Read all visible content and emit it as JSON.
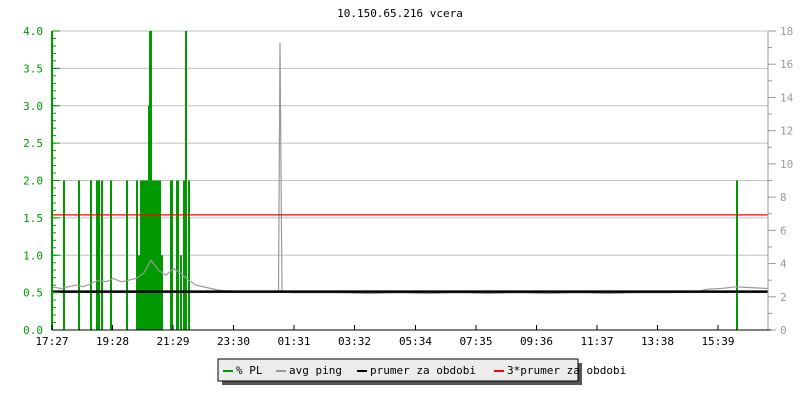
{
  "chart_data": {
    "type": "line",
    "title": "10.150.65.216 vcera",
    "x_ticks": [
      "17:27",
      "19:28",
      "21:29",
      "23:30",
      "01:31",
      "03:32",
      "05:34",
      "07:35",
      "09:36",
      "11:37",
      "13:38",
      "15:39"
    ],
    "left_axis": {
      "range": [
        0,
        4.0
      ],
      "ticks": [
        "0.0",
        "0.5",
        "1.0",
        "1.5",
        "2.0",
        "2.5",
        "3.0",
        "3.5",
        "4.0"
      ],
      "color": "#009900"
    },
    "right_axis": {
      "range": [
        0,
        18
      ],
      "ticks": [
        "0",
        "2",
        "4",
        "6",
        "8",
        "10",
        "12",
        "14",
        "16",
        "18"
      ],
      "color": "#999999"
    },
    "grid": true,
    "legend_placement": "bottom",
    "legend": [
      {
        "label": "% PL",
        "color": "#009900"
      },
      {
        "label": "avg ping",
        "color": "#999999"
      },
      {
        "label": "prumer za obdobi",
        "color": "#000000"
      },
      {
        "label": "3*prumer za obdobi",
        "color": "#ff0000"
      }
    ],
    "series": [
      {
        "name": "% PL",
        "axis": "left",
        "type": "impulse",
        "points": [
          [
            "17:51",
            2.0
          ],
          [
            "18:21",
            2.0
          ],
          [
            "18:45",
            2.0
          ],
          [
            "18:57",
            2.0
          ],
          [
            "19:01",
            2.0
          ],
          [
            "19:07",
            2.0
          ],
          [
            "19:25",
            2.0
          ],
          [
            "19:57",
            2.0
          ],
          [
            "20:17",
            2.0
          ],
          [
            "20:21",
            1.0
          ],
          [
            "20:25",
            2.0
          ],
          [
            "20:29",
            2.0
          ],
          [
            "20:31",
            2.0
          ],
          [
            "20:33",
            2.0
          ],
          [
            "20:35",
            2.0
          ],
          [
            "20:37",
            2.0
          ],
          [
            "20:39",
            2.0
          ],
          [
            "20:41",
            3.0
          ],
          [
            "20:43",
            4.0
          ],
          [
            "20:45",
            4.0
          ],
          [
            "20:47",
            2.0
          ],
          [
            "20:51",
            2.0
          ],
          [
            "20:55",
            2.0
          ],
          [
            "20:59",
            2.0
          ],
          [
            "21:03",
            2.0
          ],
          [
            "21:07",
            1.0
          ],
          [
            "21:25",
            2.0
          ],
          [
            "21:27",
            2.0
          ],
          [
            "21:37",
            2.0
          ],
          [
            "21:39",
            2.0
          ],
          [
            "21:45",
            1.0
          ],
          [
            "21:51",
            2.0
          ],
          [
            "21:53",
            2.0
          ],
          [
            "21:55",
            4.0
          ],
          [
            "22:01",
            2.0
          ],
          [
            "16:17",
            2.0
          ]
        ]
      },
      {
        "name": "avg ping",
        "axis": "right",
        "points": [
          [
            "17:27",
            2.6
          ],
          [
            "17:45",
            2.5
          ],
          [
            "18:00",
            2.6
          ],
          [
            "18:15",
            2.7
          ],
          [
            "18:30",
            2.6
          ],
          [
            "18:45",
            2.8
          ],
          [
            "19:00",
            3.0
          ],
          [
            "19:15",
            2.9
          ],
          [
            "19:30",
            3.1
          ],
          [
            "19:45",
            2.9
          ],
          [
            "20:00",
            3.0
          ],
          [
            "20:15",
            3.1
          ],
          [
            "20:30",
            3.4
          ],
          [
            "20:45",
            4.2
          ],
          [
            "21:00",
            3.6
          ],
          [
            "21:15",
            3.3
          ],
          [
            "21:30",
            3.7
          ],
          [
            "21:45",
            3.4
          ],
          [
            "22:00",
            3.0
          ],
          [
            "22:15",
            2.7
          ],
          [
            "22:30",
            2.6
          ],
          [
            "22:45",
            2.5
          ],
          [
            "23:00",
            2.4
          ],
          [
            "23:15",
            2.35
          ],
          [
            "23:30",
            2.35
          ],
          [
            "23:45",
            2.3
          ],
          [
            "00:00",
            2.3
          ],
          [
            "00:30",
            2.3
          ],
          [
            "01:00",
            2.3
          ],
          [
            "01:03",
            17.3
          ],
          [
            "01:05",
            9.8
          ],
          [
            "01:07",
            2.3
          ],
          [
            "01:30",
            2.25
          ],
          [
            "02:00",
            2.25
          ],
          [
            "03:00",
            2.25
          ],
          [
            "04:00",
            2.2
          ],
          [
            "05:00",
            2.25
          ],
          [
            "06:00",
            2.2
          ],
          [
            "07:00",
            2.25
          ],
          [
            "08:00",
            2.2
          ],
          [
            "09:00",
            2.25
          ],
          [
            "10:00",
            2.2
          ],
          [
            "11:00",
            2.25
          ],
          [
            "12:00",
            2.2
          ],
          [
            "13:00",
            2.25
          ],
          [
            "14:00",
            2.25
          ],
          [
            "15:00",
            2.3
          ],
          [
            "15:15",
            2.45
          ],
          [
            "15:45",
            2.5
          ],
          [
            "16:15",
            2.6
          ],
          [
            "16:45",
            2.55
          ],
          [
            "17:19",
            2.5
          ]
        ]
      },
      {
        "name": "prumer za obdobi",
        "axis": "right",
        "constant": 2.31
      },
      {
        "name": "3*prumer za obdobi",
        "axis": "right",
        "constant": 6.93
      }
    ]
  }
}
